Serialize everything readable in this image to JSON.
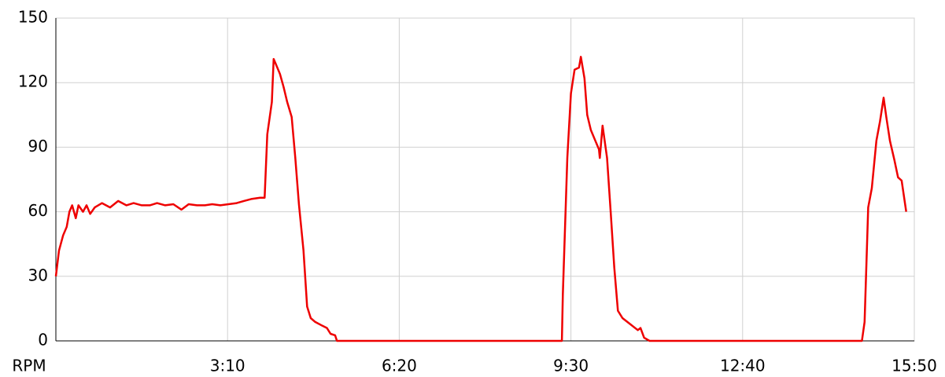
{
  "chart_data": {
    "type": "line",
    "x_label": "RPM",
    "x": [
      0,
      3.5,
      8,
      12,
      15,
      18,
      22,
      25,
      30,
      34,
      38,
      43,
      51,
      60,
      69,
      78,
      86,
      95,
      104,
      112,
      121,
      130,
      139,
      147,
      156,
      165,
      173,
      182,
      191,
      200,
      208,
      217,
      226,
      231,
      234,
      239,
      241,
      243,
      248,
      252,
      256,
      261,
      265,
      269,
      274,
      278,
      282,
      287,
      295,
      300,
      304,
      309,
      311,
      560,
      561,
      566,
      570,
      574,
      579,
      581,
      585,
      588,
      592,
      597,
      601,
      602,
      605,
      610,
      614,
      618,
      622,
      627,
      635,
      644,
      647,
      651,
      657,
      892,
      895,
      899,
      903,
      908,
      912,
      916,
      919,
      923,
      928,
      932,
      936,
      941
    ],
    "series": [
      {
        "name": "RPM",
        "color": "#ee0000",
        "values": [
          30,
          42,
          49,
          53,
          60,
          63,
          57,
          63,
          60,
          63,
          59,
          62,
          64,
          62,
          65,
          63,
          64,
          63,
          63,
          64,
          63,
          63.5,
          61,
          63.5,
          63,
          63,
          63.5,
          63,
          63.5,
          64,
          65,
          66,
          66.5,
          66.5,
          96,
          111,
          131,
          129,
          124,
          118,
          111,
          104,
          85,
          63.5,
          42,
          16,
          10.6,
          8.8,
          7,
          6,
          3.3,
          2.6,
          0,
          0,
          21.5,
          85,
          115,
          126,
          127,
          132,
          122,
          105,
          98,
          93,
          89,
          85,
          100,
          85,
          60,
          34,
          14,
          10.6,
          8,
          5,
          6,
          1.5,
          0,
          0,
          8.8,
          62,
          71,
          93,
          102,
          113,
          104,
          93,
          84,
          76,
          74.5,
          60
        ]
      }
    ],
    "xlim": [
      0,
      950
    ],
    "xticks": [
      {
        "value": 190,
        "label": "3:10"
      },
      {
        "value": 380,
        "label": "6:20"
      },
      {
        "value": 570,
        "label": "9:30"
      },
      {
        "value": 760,
        "label": "12:40"
      },
      {
        "value": 950,
        "label": "15:50"
      }
    ],
    "ylim": [
      0,
      150
    ],
    "yticks": [
      0,
      30,
      60,
      90,
      120,
      150
    ],
    "grid": true
  }
}
